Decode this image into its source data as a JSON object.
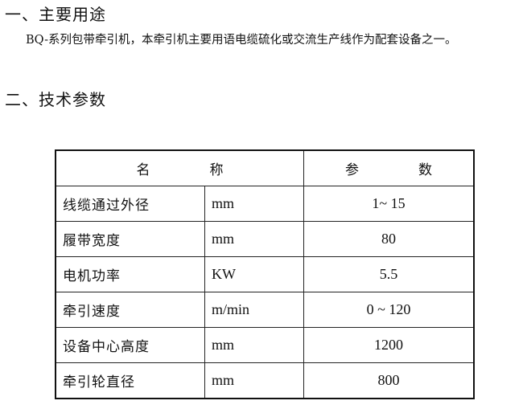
{
  "section1": {
    "title": "一、主要用途",
    "text": "BQ-系列包带牵引机，本牵引机主要用语电缆硫化或交流生产线作为配套设备之一。"
  },
  "section2": {
    "title": "二、技术参数"
  },
  "table": {
    "header": {
      "name_a": "名",
      "name_b": "称",
      "param_a": "参",
      "param_b": "数"
    },
    "rows": [
      {
        "name": "线缆通过外径",
        "unit": "mm",
        "value": "1~ 15"
      },
      {
        "name": "履带宽度",
        "unit": "mm",
        "value": "80"
      },
      {
        "name": "电机功率",
        "unit": "KW",
        "value": "5.5"
      },
      {
        "name": "牵引速度",
        "unit": "m/min",
        "value": "0 ~ 120"
      },
      {
        "name": "设备中心高度",
        "unit": "mm",
        "value": "1200"
      },
      {
        "name": "牵引轮直径",
        "unit": "mm",
        "value": "800"
      }
    ]
  }
}
